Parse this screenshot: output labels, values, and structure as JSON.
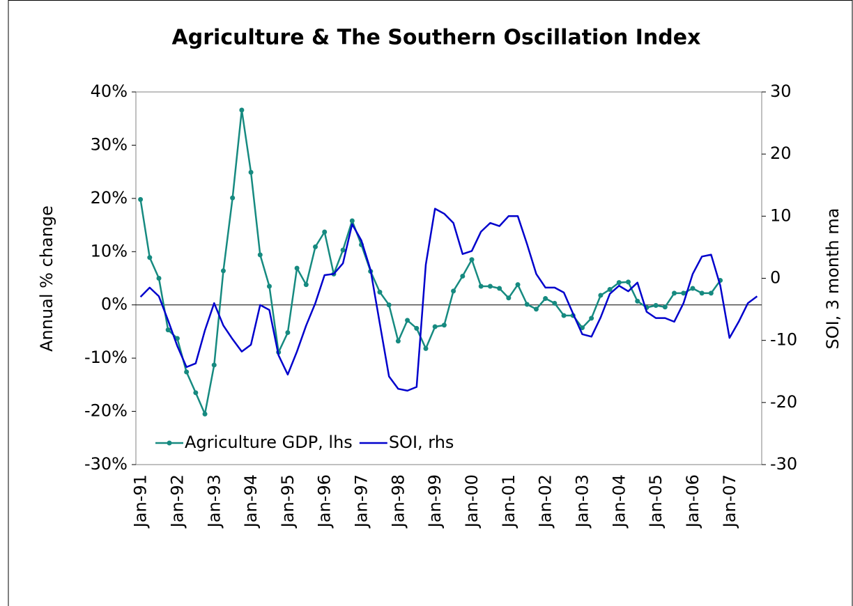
{
  "chart_data": {
    "type": "line",
    "title": "Agriculture & The Southern Oscillation Index",
    "y_label": "Annual % change",
    "y2_label": "SOI, 3 month ma",
    "categories": [
      "Jan-91",
      null,
      null,
      null,
      "Jan-92",
      null,
      null,
      null,
      "Jan-93",
      null,
      null,
      null,
      "Jan-94",
      null,
      null,
      null,
      "Jan-95",
      null,
      null,
      null,
      "Jan-96",
      null,
      null,
      null,
      "Jan-97",
      null,
      null,
      null,
      "Jan-98",
      null,
      null,
      null,
      "Jan-99",
      null,
      null,
      null,
      "Jan-00",
      null,
      null,
      null,
      "Jan-01",
      null,
      null,
      null,
      "Jan-02",
      null,
      null,
      null,
      "Jan-03",
      null,
      null,
      null,
      "Jan-04",
      null,
      null,
      null,
      "Jan-05",
      null,
      null,
      null,
      "Jan-06",
      null,
      null,
      null,
      "Jan-07",
      null,
      null,
      null
    ],
    "series": [
      {
        "name": "Agriculture GDP, lhs",
        "color": "#168a80",
        "axis": "y",
        "markers": true,
        "values": [
          19.8,
          8.9,
          5.0,
          -4.7,
          -6.3,
          -12.6,
          -16.5,
          -20.5,
          -11.3,
          6.4,
          20.1,
          36.6,
          24.9,
          9.4,
          3.5,
          -8.9,
          -5.2,
          6.9,
          3.8,
          10.9,
          13.7,
          5.8,
          10.3,
          15.8,
          11.3,
          6.3,
          2.4,
          0,
          -6.8,
          -2.9,
          -4.4,
          -8.2,
          -4.1,
          -3.8,
          2.6,
          5.4,
          8.5,
          3.5,
          3.5,
          3.1,
          1.3,
          3.8,
          0.1,
          -0.8,
          1.2,
          0.3,
          -2.0,
          -2.0,
          -4.3,
          -2.5,
          1.8,
          2.9,
          4.2,
          4.3,
          0.7,
          -0.5,
          -0.1,
          -0.4,
          2.2,
          2.2,
          3.1,
          2.2,
          2.2,
          4.6,
          null,
          null,
          null,
          null
        ]
      },
      {
        "name": "SOI, rhs",
        "color": "#0000cc",
        "axis": "y2",
        "markers": false,
        "values": [
          -3.0,
          -1.5,
          -2.9,
          -6.8,
          -10.9,
          -14.3,
          -13.7,
          -8.4,
          -4.0,
          -7.6,
          -9.8,
          -11.8,
          -10.7,
          -4.3,
          -5.1,
          -12.4,
          -15.5,
          -11.8,
          -7.6,
          -4.0,
          0.5,
          0.7,
          2.4,
          8.7,
          6.1,
          1.3,
          -7.3,
          -15.8,
          -17.8,
          -18.1,
          -17.5,
          2.2,
          11.2,
          10.4,
          8.9,
          3.9,
          4.4,
          7.5,
          8.9,
          8.4,
          10.0,
          10.0,
          5.5,
          0.7,
          -1.5,
          -1.5,
          -2.3,
          -5.7,
          -9.0,
          -9.4,
          -6.3,
          -2.5,
          -1.2,
          -2.1,
          -0.7,
          -5.4,
          -6.4,
          -6.4,
          -7.0,
          -4.0,
          0.7,
          3.5,
          3.8,
          -1.2,
          -9.6,
          -7.0,
          -4.0,
          -2.9
        ]
      }
    ],
    "ylim": [
      -30,
      40
    ],
    "yticks": [
      {
        "value": -30,
        "label": "-30%"
      },
      {
        "value": -20,
        "label": "-20%"
      },
      {
        "value": -10,
        "label": "-10%"
      },
      {
        "value": 0,
        "label": "0%"
      },
      {
        "value": 10,
        "label": "10%"
      },
      {
        "value": 20,
        "label": "20%"
      },
      {
        "value": 30,
        "label": "30%"
      },
      {
        "value": 40,
        "label": "40%"
      }
    ],
    "y2lim": [
      -30,
      30
    ],
    "y2ticks": [
      -30,
      -20,
      -10,
      0,
      10,
      20,
      30
    ],
    "grid": false,
    "legend": "bottom-left"
  }
}
